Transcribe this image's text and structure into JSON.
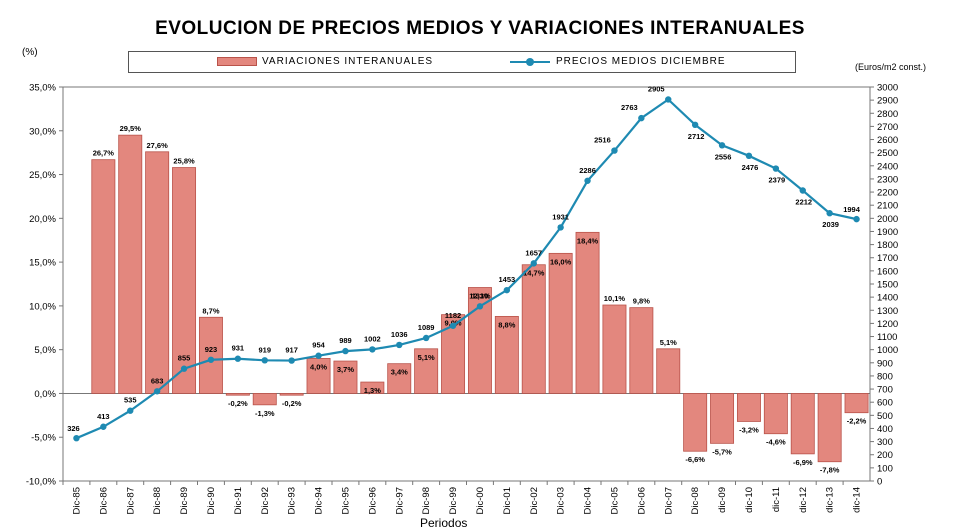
{
  "chart_data": {
    "type": "bar+line",
    "title": "EVOLUCION DE PRECIOS MEDIOS Y VARIACIONES INTERANUALES",
    "y_left_unit": "(%)",
    "y_right_unit": "(Euros/m2 const.)",
    "xlabel": "Periodos",
    "ylim_left": [
      -10,
      35
    ],
    "ylim_right": [
      0,
      3000
    ],
    "y_left_ticks": [
      "35,0%",
      "30,0%",
      "25,0%",
      "20,0%",
      "15,0%",
      "10,0%",
      "5,0%",
      "0,0%",
      "-5,0%",
      "-10,0%"
    ],
    "y_right_ticks": [
      "3000",
      "2900",
      "2800",
      "2700",
      "2600",
      "2500",
      "2400",
      "2300",
      "2200",
      "2100",
      "2000",
      "1900",
      "1800",
      "1700",
      "1600",
      "1500",
      "1400",
      "1300",
      "1200",
      "1100",
      "1000",
      "900",
      "800",
      "700",
      "600",
      "500",
      "400",
      "300",
      "200",
      "100",
      "0"
    ],
    "categories": [
      "Dic-85",
      "Dic-86",
      "Dic-87",
      "Dic-88",
      "Dic-89",
      "Dic-90",
      "Dic-91",
      "Dic-92",
      "Dic-93",
      "Dic-94",
      "Dic-95",
      "Dic-96",
      "Dic-97",
      "Dic-98",
      "Dic-99",
      "Dic-00",
      "Dic-01",
      "Dic-02",
      "Dic-03",
      "Dic-04",
      "Dic-05",
      "Dic-06",
      "Dic-07",
      "Dic-08",
      "dic-09",
      "dic-10",
      "dic-11",
      "dic-12",
      "dic-13",
      "dic-14"
    ],
    "grid": false,
    "legend_position": "top",
    "series": [
      {
        "name": "VARIACIONES INTERANUALES",
        "kind": "bar",
        "axis": "left",
        "color": "#e3877e",
        "values": [
          null,
          26.7,
          29.5,
          27.6,
          25.8,
          8.7,
          -0.2,
          -1.3,
          -0.2,
          4.0,
          3.7,
          1.3,
          3.4,
          5.1,
          9.0,
          12.1,
          8.8,
          14.7,
          16.0,
          18.4,
          10.1,
          9.8,
          5.1,
          -6.6,
          -5.7,
          -3.2,
          -4.6,
          -6.9,
          -7.8,
          -2.2
        ],
        "labels": [
          "",
          "26,7%",
          "29,5%",
          "27,6%",
          "25,8%",
          "8,7%",
          "-0,2%",
          "-1,3%",
          "-0,2%",
          "4,0%",
          "3,7%",
          "1,3%",
          "3,4%",
          "5,1%",
          "9,0%",
          "12,1%",
          "8,8%",
          "14,7%",
          "16,0%",
          "18,4%",
          "10,1%",
          "9,8%",
          "5,1%",
          "-6,6%",
          "-5,7%",
          "-3,2%",
          "-4,6%",
          "-6,9%",
          "-7,8%",
          "-2,2%"
        ]
      },
      {
        "name": "PRECIOS MEDIOS DICIEMBRE",
        "kind": "line",
        "axis": "right",
        "color": "#1e8ab2",
        "values": [
          326,
          413,
          535,
          683,
          855,
          923,
          931,
          919,
          917,
          954,
          989,
          1002,
          1036,
          1089,
          1182,
          1330,
          1453,
          1657,
          1931,
          2286,
          2516,
          2763,
          2905,
          2712,
          2556,
          2476,
          2379,
          2212,
          2039,
          1994
        ],
        "labels": [
          "326",
          "413",
          "535",
          "683",
          "855",
          "923",
          "931",
          "919",
          "917",
          "954",
          "989",
          "1002",
          "1036",
          "1089",
          "1182",
          "1330",
          "1453",
          "1657",
          "1931",
          "2286",
          "2516",
          "2763",
          "2905",
          "2712",
          "2556",
          "2476",
          "2379",
          "2212",
          "2039",
          "1994"
        ]
      }
    ]
  }
}
